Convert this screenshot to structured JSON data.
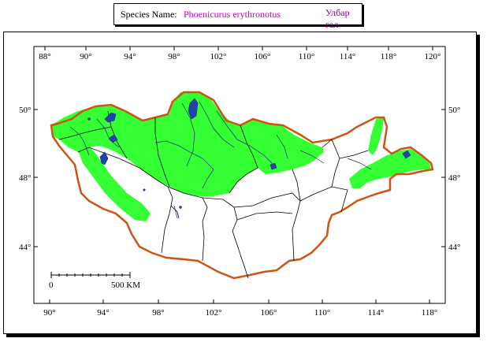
{
  "header": {
    "species_label": "Species Name:",
    "species_name": "Phoenicurus erythronotus",
    "local_name": "Улбар гал сүүлт"
  },
  "map": {
    "top_lon_labels": [
      "88°",
      "90°",
      "94°",
      "98°",
      "102°",
      "106°",
      "110°",
      "114°",
      "118°",
      "120°"
    ],
    "bottom_lon_labels": [
      "90°",
      "94°",
      "98°",
      "102°",
      "106°",
      "110°",
      "114°",
      "118°"
    ],
    "left_lat_labels": [
      "50°",
      "48°",
      "44°"
    ],
    "right_lat_labels": [
      "50°",
      "48°",
      "44°"
    ],
    "scale_start": "0",
    "scale_end": "500 KM",
    "colors": {
      "range": "#33ff33",
      "border": "#cc5511",
      "lakes": "#2244aa",
      "admin": "#000000"
    }
  }
}
